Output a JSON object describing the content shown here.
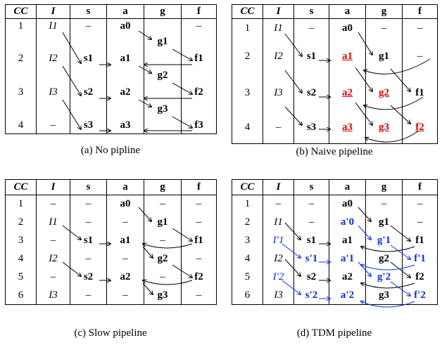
{
  "headers": [
    "CC",
    "I",
    "s",
    "a",
    "g",
    "f"
  ],
  "panels": [
    {
      "caption": "(a) No pipline",
      "rows": [
        {
          "cc": "1",
          "i": "I1",
          "s": "–",
          "a": "a0",
          "g": "",
          "f": "–"
        },
        {
          "cc": "",
          "i": "",
          "s": "",
          "a": "",
          "g": "g1",
          "f": ""
        },
        {
          "cc": "2",
          "i": "I2",
          "s": "s1",
          "a": "a1",
          "g": "",
          "f": "f1"
        },
        {
          "cc": "",
          "i": "",
          "s": "",
          "a": "",
          "g": "g2",
          "f": ""
        },
        {
          "cc": "3",
          "i": "I3",
          "s": "s2",
          "a": "a2",
          "g": "",
          "f": "f2"
        },
        {
          "cc": "",
          "i": "",
          "s": "",
          "a": "",
          "g": "g3",
          "f": ""
        },
        {
          "cc": "4",
          "i": "–",
          "s": "s3",
          "a": "a3",
          "g": "",
          "f": "f3"
        }
      ]
    },
    {
      "caption": "(b) Naive pipeline",
      "rows": [
        {
          "cc": "1",
          "i": "I1",
          "s": "–",
          "a": "a0",
          "g": "–",
          "f": "–"
        },
        {
          "cc": "2",
          "i": "I2",
          "s": "s1",
          "a": "a1",
          "g": "g1",
          "f": "–"
        },
        {
          "cc": "3",
          "i": "I3",
          "s": "s2",
          "a": "a2",
          "g": "g2",
          "f": "f1"
        },
        {
          "cc": "4",
          "i": "–",
          "s": "s3",
          "a": "a3",
          "g": "g3",
          "f": "f2"
        }
      ]
    },
    {
      "caption": "(c) Slow pipeline",
      "rows": [
        {
          "cc": "1",
          "i": "–",
          "s": "–",
          "a": "a0",
          "g": "–",
          "f": "–"
        },
        {
          "cc": "2",
          "i": "I1",
          "s": "–",
          "a": "–",
          "g": "g1",
          "f": "–"
        },
        {
          "cc": "3",
          "i": "–",
          "s": "s1",
          "a": "a1",
          "g": "–",
          "f": "f1"
        },
        {
          "cc": "4",
          "i": "I2",
          "s": "–",
          "a": "–",
          "g": "g2",
          "f": "–"
        },
        {
          "cc": "5",
          "i": "–",
          "s": "s2",
          "a": "a2",
          "g": "–",
          "f": "f2"
        },
        {
          "cc": "6",
          "i": "I3",
          "s": "–",
          "a": "–",
          "g": "g3",
          "f": "–"
        }
      ]
    },
    {
      "caption": "(d) TDM pipeline",
      "rows": [
        {
          "cc": "1",
          "i": "–",
          "s": "–",
          "a": "a0",
          "g": "–",
          "f": "–"
        },
        {
          "cc": "2",
          "i": "I1",
          "s": "–",
          "a": "a'0",
          "g": "g1",
          "f": "–"
        },
        {
          "cc": "3",
          "i": "I'1",
          "s": "s1",
          "a": "a1",
          "g": "g'1",
          "f": "f1"
        },
        {
          "cc": "4",
          "i": "I2",
          "s": "s'1",
          "a": "a'1",
          "g": "g2",
          "f": "f'1"
        },
        {
          "cc": "5",
          "i": "I'2",
          "s": "s2",
          "a": "a2",
          "g": "g'2",
          "f": "f2"
        },
        {
          "cc": "6",
          "i": "I3",
          "s": "s'2",
          "a": "a'2",
          "g": "g3",
          "f": "f'2"
        }
      ]
    }
  ],
  "colors": {
    "highlight_red": "#e00000",
    "highlight_blue": "#0a2fe0"
  }
}
